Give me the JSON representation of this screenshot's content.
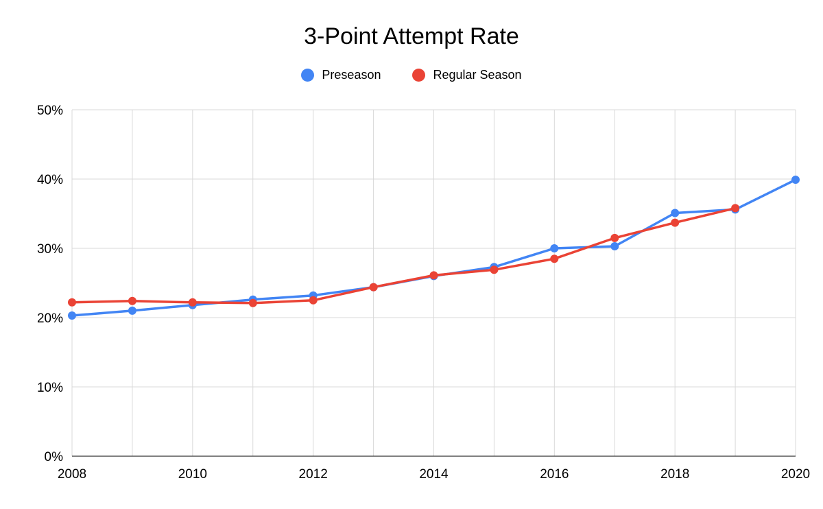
{
  "chart_data": {
    "type": "line",
    "title": "3-Point Attempt Rate",
    "x": [
      2008,
      2009,
      2010,
      2011,
      2012,
      2013,
      2014,
      2015,
      2016,
      2017,
      2018,
      2019,
      2020
    ],
    "series": [
      {
        "name": "Preseason",
        "color": "#4285f4",
        "values": [
          20.3,
          21.0,
          21.8,
          22.6,
          23.2,
          24.4,
          26.0,
          27.3,
          30.0,
          30.3,
          35.1,
          35.6,
          39.9
        ]
      },
      {
        "name": "Regular Season",
        "color": "#ea4335",
        "values": [
          22.2,
          22.4,
          22.2,
          22.1,
          22.5,
          24.4,
          26.1,
          26.9,
          28.5,
          31.5,
          33.7,
          35.8,
          null
        ]
      }
    ],
    "ylim": [
      0,
      50
    ],
    "yticks": [
      0,
      10,
      20,
      30,
      40,
      50
    ],
    "ytick_labels": [
      "0%",
      "10%",
      "20%",
      "30%",
      "40%",
      "50%"
    ],
    "xticks": [
      2008,
      2010,
      2012,
      2014,
      2016,
      2018,
      2020
    ],
    "xtick_labels": [
      "2008",
      "2010",
      "2012",
      "2014",
      "2016",
      "2018",
      "2020"
    ],
    "grid": true,
    "grid_color": "#d9d9d9",
    "axis_color": "#000000",
    "legend_position": "top"
  }
}
